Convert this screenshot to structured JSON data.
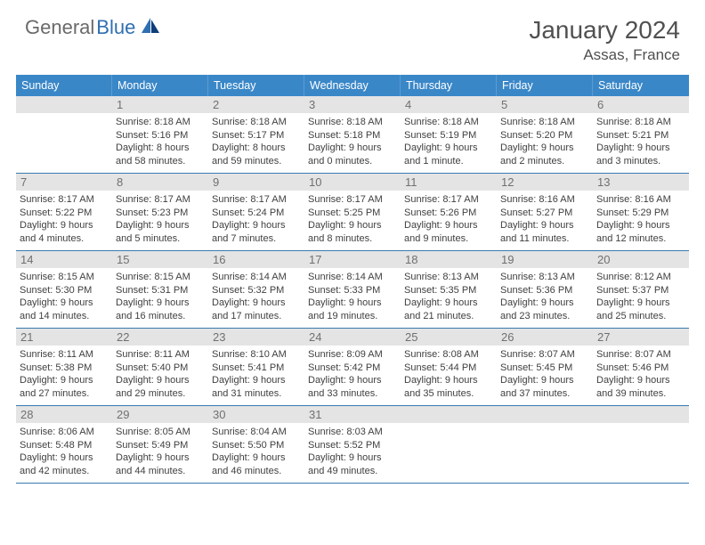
{
  "brand": {
    "part1": "General",
    "part2": "Blue",
    "color_general": "#6a6a6a",
    "color_blue": "#2f6fb0"
  },
  "title": "January 2024",
  "location": "Assas, France",
  "header_bg": "#3a87c8",
  "header_fg": "#ffffff",
  "daynum_bg": "#e4e4e4",
  "week_border": "#3a7ab0",
  "body_text": "#404040",
  "font_day_header": 12.5,
  "font_day_num": 13,
  "font_body": 11,
  "day_names": [
    "Sunday",
    "Monday",
    "Tuesday",
    "Wednesday",
    "Thursday",
    "Friday",
    "Saturday"
  ],
  "weeks": [
    {
      "cells": [
        {
          "empty": true
        },
        {
          "n": "1",
          "sr": "Sunrise: 8:18 AM",
          "ss": "Sunset: 5:16 PM",
          "d1": "Daylight: 8 hours",
          "d2": "and 58 minutes."
        },
        {
          "n": "2",
          "sr": "Sunrise: 8:18 AM",
          "ss": "Sunset: 5:17 PM",
          "d1": "Daylight: 8 hours",
          "d2": "and 59 minutes."
        },
        {
          "n": "3",
          "sr": "Sunrise: 8:18 AM",
          "ss": "Sunset: 5:18 PM",
          "d1": "Daylight: 9 hours",
          "d2": "and 0 minutes."
        },
        {
          "n": "4",
          "sr": "Sunrise: 8:18 AM",
          "ss": "Sunset: 5:19 PM",
          "d1": "Daylight: 9 hours",
          "d2": "and 1 minute."
        },
        {
          "n": "5",
          "sr": "Sunrise: 8:18 AM",
          "ss": "Sunset: 5:20 PM",
          "d1": "Daylight: 9 hours",
          "d2": "and 2 minutes."
        },
        {
          "n": "6",
          "sr": "Sunrise: 8:18 AM",
          "ss": "Sunset: 5:21 PM",
          "d1": "Daylight: 9 hours",
          "d2": "and 3 minutes."
        }
      ]
    },
    {
      "cells": [
        {
          "n": "7",
          "sr": "Sunrise: 8:17 AM",
          "ss": "Sunset: 5:22 PM",
          "d1": "Daylight: 9 hours",
          "d2": "and 4 minutes."
        },
        {
          "n": "8",
          "sr": "Sunrise: 8:17 AM",
          "ss": "Sunset: 5:23 PM",
          "d1": "Daylight: 9 hours",
          "d2": "and 5 minutes."
        },
        {
          "n": "9",
          "sr": "Sunrise: 8:17 AM",
          "ss": "Sunset: 5:24 PM",
          "d1": "Daylight: 9 hours",
          "d2": "and 7 minutes."
        },
        {
          "n": "10",
          "sr": "Sunrise: 8:17 AM",
          "ss": "Sunset: 5:25 PM",
          "d1": "Daylight: 9 hours",
          "d2": "and 8 minutes."
        },
        {
          "n": "11",
          "sr": "Sunrise: 8:17 AM",
          "ss": "Sunset: 5:26 PM",
          "d1": "Daylight: 9 hours",
          "d2": "and 9 minutes."
        },
        {
          "n": "12",
          "sr": "Sunrise: 8:16 AM",
          "ss": "Sunset: 5:27 PM",
          "d1": "Daylight: 9 hours",
          "d2": "and 11 minutes."
        },
        {
          "n": "13",
          "sr": "Sunrise: 8:16 AM",
          "ss": "Sunset: 5:29 PM",
          "d1": "Daylight: 9 hours",
          "d2": "and 12 minutes."
        }
      ]
    },
    {
      "cells": [
        {
          "n": "14",
          "sr": "Sunrise: 8:15 AM",
          "ss": "Sunset: 5:30 PM",
          "d1": "Daylight: 9 hours",
          "d2": "and 14 minutes."
        },
        {
          "n": "15",
          "sr": "Sunrise: 8:15 AM",
          "ss": "Sunset: 5:31 PM",
          "d1": "Daylight: 9 hours",
          "d2": "and 16 minutes."
        },
        {
          "n": "16",
          "sr": "Sunrise: 8:14 AM",
          "ss": "Sunset: 5:32 PM",
          "d1": "Daylight: 9 hours",
          "d2": "and 17 minutes."
        },
        {
          "n": "17",
          "sr": "Sunrise: 8:14 AM",
          "ss": "Sunset: 5:33 PM",
          "d1": "Daylight: 9 hours",
          "d2": "and 19 minutes."
        },
        {
          "n": "18",
          "sr": "Sunrise: 8:13 AM",
          "ss": "Sunset: 5:35 PM",
          "d1": "Daylight: 9 hours",
          "d2": "and 21 minutes."
        },
        {
          "n": "19",
          "sr": "Sunrise: 8:13 AM",
          "ss": "Sunset: 5:36 PM",
          "d1": "Daylight: 9 hours",
          "d2": "and 23 minutes."
        },
        {
          "n": "20",
          "sr": "Sunrise: 8:12 AM",
          "ss": "Sunset: 5:37 PM",
          "d1": "Daylight: 9 hours",
          "d2": "and 25 minutes."
        }
      ]
    },
    {
      "cells": [
        {
          "n": "21",
          "sr": "Sunrise: 8:11 AM",
          "ss": "Sunset: 5:38 PM",
          "d1": "Daylight: 9 hours",
          "d2": "and 27 minutes."
        },
        {
          "n": "22",
          "sr": "Sunrise: 8:11 AM",
          "ss": "Sunset: 5:40 PM",
          "d1": "Daylight: 9 hours",
          "d2": "and 29 minutes."
        },
        {
          "n": "23",
          "sr": "Sunrise: 8:10 AM",
          "ss": "Sunset: 5:41 PM",
          "d1": "Daylight: 9 hours",
          "d2": "and 31 minutes."
        },
        {
          "n": "24",
          "sr": "Sunrise: 8:09 AM",
          "ss": "Sunset: 5:42 PM",
          "d1": "Daylight: 9 hours",
          "d2": "and 33 minutes."
        },
        {
          "n": "25",
          "sr": "Sunrise: 8:08 AM",
          "ss": "Sunset: 5:44 PM",
          "d1": "Daylight: 9 hours",
          "d2": "and 35 minutes."
        },
        {
          "n": "26",
          "sr": "Sunrise: 8:07 AM",
          "ss": "Sunset: 5:45 PM",
          "d1": "Daylight: 9 hours",
          "d2": "and 37 minutes."
        },
        {
          "n": "27",
          "sr": "Sunrise: 8:07 AM",
          "ss": "Sunset: 5:46 PM",
          "d1": "Daylight: 9 hours",
          "d2": "and 39 minutes."
        }
      ]
    },
    {
      "cells": [
        {
          "n": "28",
          "sr": "Sunrise: 8:06 AM",
          "ss": "Sunset: 5:48 PM",
          "d1": "Daylight: 9 hours",
          "d2": "and 42 minutes."
        },
        {
          "n": "29",
          "sr": "Sunrise: 8:05 AM",
          "ss": "Sunset: 5:49 PM",
          "d1": "Daylight: 9 hours",
          "d2": "and 44 minutes."
        },
        {
          "n": "30",
          "sr": "Sunrise: 8:04 AM",
          "ss": "Sunset: 5:50 PM",
          "d1": "Daylight: 9 hours",
          "d2": "and 46 minutes."
        },
        {
          "n": "31",
          "sr": "Sunrise: 8:03 AM",
          "ss": "Sunset: 5:52 PM",
          "d1": "Daylight: 9 hours",
          "d2": "and 49 minutes."
        },
        {
          "empty": true
        },
        {
          "empty": true
        },
        {
          "empty": true
        }
      ]
    }
  ]
}
